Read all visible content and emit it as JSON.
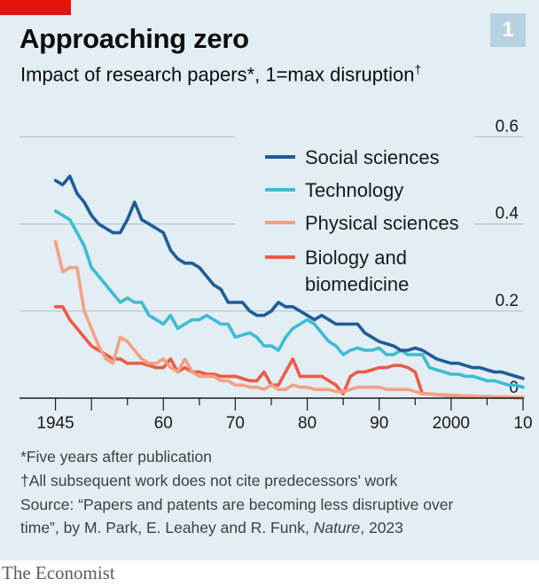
{
  "badge": "1",
  "chart_data": {
    "type": "line",
    "title": "Approaching zero",
    "subtitle": "Impact of research papers*, 1=max disruption",
    "subtitle_mark": "†",
    "ylim": [
      0,
      0.6
    ],
    "yticks": [
      0,
      0.2,
      0.4,
      0.6
    ],
    "ytick_labels": [
      "0",
      "0.2",
      "0.4",
      "0.6"
    ],
    "xlim": [
      1940,
      2010
    ],
    "xticks": [
      1945,
      1960,
      1970,
      1980,
      1990,
      2000,
      2010
    ],
    "xtick_labels": [
      "1945",
      "60",
      "70",
      "80",
      "90",
      "2000",
      "10"
    ],
    "grid": true,
    "legend": "inside top-right",
    "series": [
      {
        "name": "Social sciences",
        "color": "#1f5c99",
        "x": [
          1945,
          1946,
          1947,
          1948,
          1949,
          1950,
          1951,
          1952,
          1953,
          1954,
          1955,
          1956,
          1957,
          1958,
          1959,
          1960,
          1961,
          1962,
          1963,
          1964,
          1965,
          1966,
          1967,
          1968,
          1969,
          1970,
          1971,
          1972,
          1973,
          1974,
          1975,
          1976,
          1977,
          1978,
          1979,
          1980,
          1981,
          1982,
          1983,
          1984,
          1985,
          1986,
          1987,
          1988,
          1989,
          1990,
          1991,
          1992,
          1993,
          1994,
          1995,
          1996,
          1997,
          1998,
          1999,
          2000,
          2001,
          2002,
          2003,
          2004,
          2005,
          2006,
          2007,
          2008,
          2009,
          2010
        ],
        "y": [
          0.5,
          0.49,
          0.51,
          0.47,
          0.45,
          0.42,
          0.4,
          0.39,
          0.38,
          0.38,
          0.41,
          0.45,
          0.41,
          0.4,
          0.39,
          0.38,
          0.34,
          0.32,
          0.31,
          0.31,
          0.3,
          0.28,
          0.26,
          0.25,
          0.22,
          0.22,
          0.22,
          0.2,
          0.19,
          0.19,
          0.2,
          0.22,
          0.21,
          0.21,
          0.2,
          0.19,
          0.18,
          0.19,
          0.18,
          0.17,
          0.17,
          0.17,
          0.17,
          0.15,
          0.14,
          0.13,
          0.125,
          0.12,
          0.11,
          0.11,
          0.115,
          0.11,
          0.1,
          0.09,
          0.085,
          0.08,
          0.08,
          0.075,
          0.07,
          0.07,
          0.065,
          0.06,
          0.06,
          0.055,
          0.05,
          0.045
        ]
      },
      {
        "name": "Technology",
        "color": "#3ebcd2",
        "x": [
          1945,
          1946,
          1947,
          1948,
          1949,
          1950,
          1951,
          1952,
          1953,
          1954,
          1955,
          1956,
          1957,
          1958,
          1959,
          1960,
          1961,
          1962,
          1963,
          1964,
          1965,
          1966,
          1967,
          1968,
          1969,
          1970,
          1971,
          1972,
          1973,
          1974,
          1975,
          1976,
          1977,
          1978,
          1979,
          1980,
          1981,
          1982,
          1983,
          1984,
          1985,
          1986,
          1987,
          1988,
          1989,
          1990,
          1991,
          1992,
          1993,
          1994,
          1995,
          1996,
          1997,
          1998,
          1999,
          2000,
          2001,
          2002,
          2003,
          2004,
          2005,
          2006,
          2007,
          2008,
          2009,
          2010
        ],
        "y": [
          0.43,
          0.42,
          0.41,
          0.38,
          0.35,
          0.3,
          0.28,
          0.26,
          0.24,
          0.22,
          0.23,
          0.22,
          0.22,
          0.19,
          0.18,
          0.17,
          0.19,
          0.16,
          0.17,
          0.18,
          0.18,
          0.19,
          0.18,
          0.17,
          0.17,
          0.14,
          0.145,
          0.15,
          0.14,
          0.12,
          0.12,
          0.11,
          0.14,
          0.16,
          0.17,
          0.18,
          0.17,
          0.15,
          0.13,
          0.12,
          0.1,
          0.11,
          0.115,
          0.11,
          0.11,
          0.115,
          0.1,
          0.1,
          0.11,
          0.1,
          0.1,
          0.1,
          0.07,
          0.065,
          0.06,
          0.055,
          0.055,
          0.05,
          0.05,
          0.045,
          0.04,
          0.04,
          0.035,
          0.03,
          0.03,
          0.025
        ]
      },
      {
        "name": "Physical sciences",
        "color": "#f4a183",
        "x": [
          1945,
          1946,
          1947,
          1948,
          1949,
          1950,
          1951,
          1952,
          1953,
          1954,
          1955,
          1956,
          1957,
          1958,
          1959,
          1960,
          1961,
          1962,
          1963,
          1964,
          1965,
          1966,
          1967,
          1968,
          1969,
          1970,
          1971,
          1972,
          1973,
          1974,
          1975,
          1976,
          1977,
          1978,
          1979,
          1980,
          1981,
          1982,
          1983,
          1984,
          1985,
          1986,
          1987,
          1988,
          1989,
          1990,
          1991,
          1992,
          1993,
          1994,
          1995,
          1996,
          1997,
          1998,
          1999,
          2000,
          2001,
          2002,
          2003,
          2004,
          2005,
          2006,
          2007,
          2008,
          2009,
          2010
        ],
        "y": [
          0.36,
          0.29,
          0.3,
          0.3,
          0.2,
          0.16,
          0.12,
          0.09,
          0.08,
          0.14,
          0.13,
          0.11,
          0.09,
          0.08,
          0.08,
          0.09,
          0.07,
          0.06,
          0.09,
          0.06,
          0.05,
          0.05,
          0.05,
          0.04,
          0.04,
          0.03,
          0.03,
          0.025,
          0.025,
          0.02,
          0.03,
          0.02,
          0.02,
          0.03,
          0.025,
          0.025,
          0.02,
          0.02,
          0.02,
          0.015,
          0.015,
          0.02,
          0.025,
          0.025,
          0.025,
          0.025,
          0.02,
          0.02,
          0.02,
          0.02,
          0.015,
          0.01,
          0.01,
          0.008,
          0.008,
          0.007,
          0.006,
          0.005,
          0.005,
          0.004,
          0.004,
          0.003,
          0.003,
          0.003,
          0.002,
          0.002
        ]
      },
      {
        "name": "Biology and biomedicine",
        "color": "#eb5c45",
        "x": [
          1945,
          1946,
          1947,
          1948,
          1949,
          1950,
          1951,
          1952,
          1953,
          1954,
          1955,
          1956,
          1957,
          1958,
          1959,
          1960,
          1961,
          1962,
          1963,
          1964,
          1965,
          1966,
          1967,
          1968,
          1969,
          1970,
          1971,
          1972,
          1973,
          1974,
          1975,
          1976,
          1977,
          1978,
          1979,
          1980,
          1981,
          1982,
          1983,
          1984,
          1985,
          1986,
          1987,
          1988,
          1989,
          1990,
          1991,
          1992,
          1993,
          1994,
          1995,
          1996,
          1997,
          1998,
          1999,
          2000,
          2001,
          2002,
          2003,
          2004,
          2005,
          2006,
          2007,
          2008,
          2009,
          2010
        ],
        "y": [
          0.21,
          0.21,
          0.18,
          0.16,
          0.14,
          0.12,
          0.11,
          0.1,
          0.09,
          0.09,
          0.08,
          0.08,
          0.08,
          0.075,
          0.07,
          0.07,
          0.09,
          0.06,
          0.07,
          0.06,
          0.06,
          0.055,
          0.055,
          0.05,
          0.05,
          0.05,
          0.045,
          0.04,
          0.04,
          0.06,
          0.03,
          0.03,
          0.06,
          0.09,
          0.05,
          0.05,
          0.05,
          0.05,
          0.04,
          0.03,
          0.01,
          0.05,
          0.06,
          0.06,
          0.065,
          0.07,
          0.07,
          0.075,
          0.075,
          0.07,
          0.06,
          0.01,
          0.01,
          0.008,
          0.007,
          0.006,
          0.005,
          0.004,
          0.004,
          0.003,
          0.003,
          0.002,
          0.002,
          0.002,
          0.001,
          0.001
        ]
      }
    ]
  },
  "footnotes": {
    "five_years": "*Five years after publication",
    "dagger": "†All subsequent work does not cite predecessors’ work",
    "source_line1": "Source: “Papers and patents are becoming less disruptive over",
    "source_line2_pre": "time”, by M. Park, E. Leahey and R. Funk, ",
    "source_journal": "Nature",
    "source_line2_post": ", 2023"
  },
  "brand": "The Economist",
  "colors": {
    "background": "#e3edf4",
    "accent_red": "#e3120b",
    "badge": "#b6d2e2"
  }
}
